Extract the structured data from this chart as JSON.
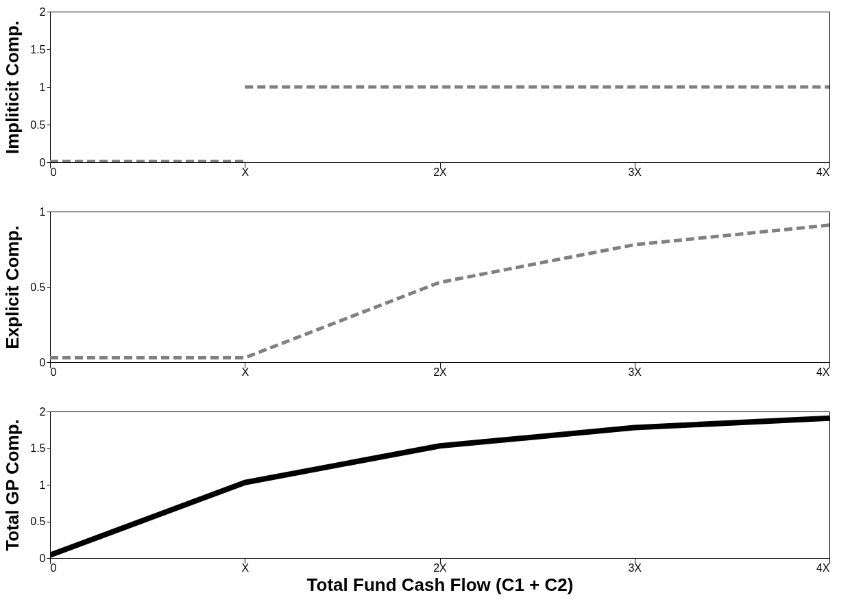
{
  "chart_data": [
    {
      "type": "line",
      "ylabel": "Impliticit Comp.",
      "series": [
        {
          "color": "#808080",
          "x": [
            0,
            1
          ],
          "values": [
            0.01,
            0.01
          ]
        },
        {
          "color": "#808080",
          "x": [
            1,
            4
          ],
          "values": [
            1,
            1
          ]
        }
      ],
      "line_style": "dashed",
      "xlim": [
        0,
        4
      ],
      "xticks": [
        {
          "value": 0,
          "label": "0"
        },
        {
          "value": 1,
          "label": "X"
        },
        {
          "value": 2,
          "label": "2X"
        },
        {
          "value": 3,
          "label": "3X"
        },
        {
          "value": 4,
          "label": "4X"
        }
      ],
      "ylim": [
        0,
        2
      ],
      "yticks": [
        0,
        0.5,
        1,
        1.5,
        2
      ],
      "grid": false
    },
    {
      "type": "line",
      "ylabel": "Explicit Comp.",
      "x": [
        0,
        1,
        2,
        3,
        4
      ],
      "series": [
        {
          "color": "#808080",
          "values": [
            0.03,
            0.03,
            0.53,
            0.78,
            0.91
          ]
        }
      ],
      "line_style": "dashed",
      "xlim": [
        0,
        4
      ],
      "xticks": [
        {
          "value": 0,
          "label": "0"
        },
        {
          "value": 1,
          "label": "X"
        },
        {
          "value": 2,
          "label": "2X"
        },
        {
          "value": 3,
          "label": "3X"
        },
        {
          "value": 4,
          "label": "4X"
        }
      ],
      "ylim": [
        0,
        1
      ],
      "yticks": [
        0,
        0.5,
        1
      ],
      "grid": false
    },
    {
      "type": "line",
      "ylabel": "Total GP Comp.",
      "xlabel": "Total Fund Cash Flow (C1 + C2)",
      "x": [
        0,
        1,
        2,
        3,
        4
      ],
      "series": [
        {
          "color": "#000000",
          "values": [
            0.04,
            1.03,
            1.53,
            1.78,
            1.91
          ]
        }
      ],
      "line_style": "solid",
      "xlim": [
        0,
        4
      ],
      "xticks": [
        {
          "value": 0,
          "label": "0"
        },
        {
          "value": 1,
          "label": "X"
        },
        {
          "value": 2,
          "label": "2X"
        },
        {
          "value": 3,
          "label": "3X"
        },
        {
          "value": 4,
          "label": "4X"
        }
      ],
      "ylim": [
        0,
        2
      ],
      "yticks": [
        0,
        0.5,
        1,
        1.5,
        2
      ],
      "grid": false
    }
  ]
}
